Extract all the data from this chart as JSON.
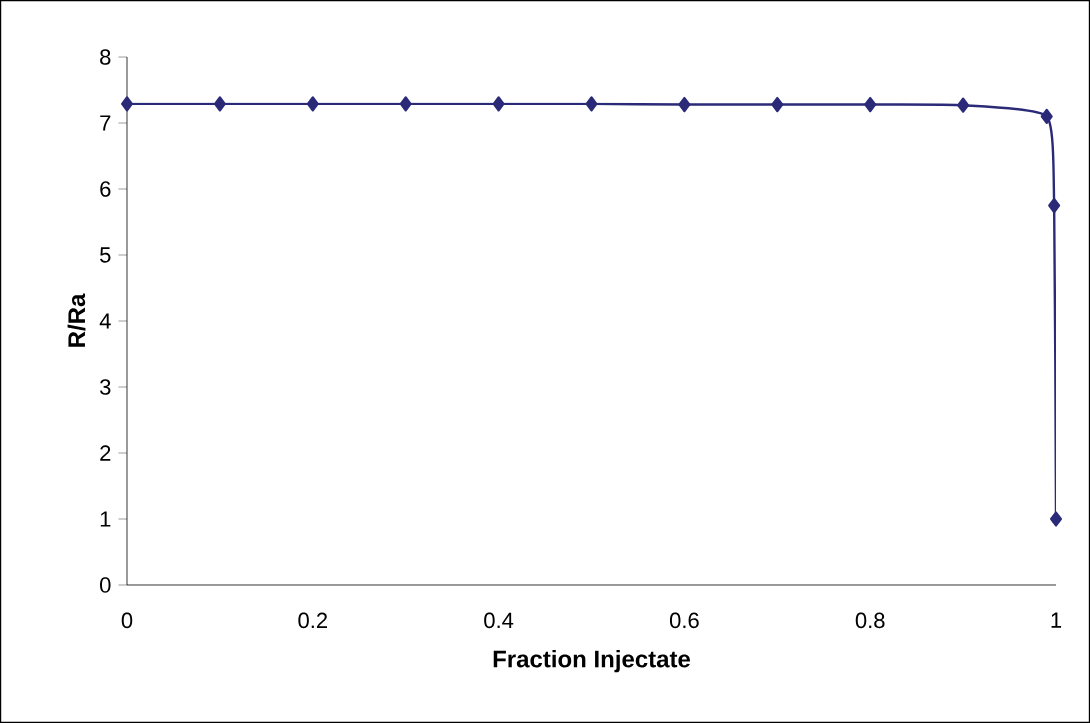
{
  "chart_data": {
    "type": "line",
    "xlabel": "Fraction Injectate",
    "ylabel": "R/Ra",
    "x": [
      0,
      0.1,
      0.2,
      0.3,
      0.4,
      0.5,
      0.6,
      0.7,
      0.8,
      0.9,
      0.99,
      0.998,
      1.0
    ],
    "series": [
      {
        "color": "#2b2a78",
        "values": [
          7.29,
          7.29,
          7.29,
          7.29,
          7.29,
          7.29,
          7.28,
          7.28,
          7.28,
          7.27,
          7.1,
          5.75,
          1.0
        ]
      }
    ],
    "xlim": [
      0,
      1
    ],
    "ylim": [
      0,
      8
    ],
    "xticks": [
      0,
      0.2,
      0.4,
      0.6,
      0.8,
      1
    ],
    "yticks": [
      0,
      1,
      2,
      3,
      4,
      5,
      6,
      7,
      8
    ],
    "marker": "diamond",
    "line_style": "solid",
    "grid": false
  }
}
